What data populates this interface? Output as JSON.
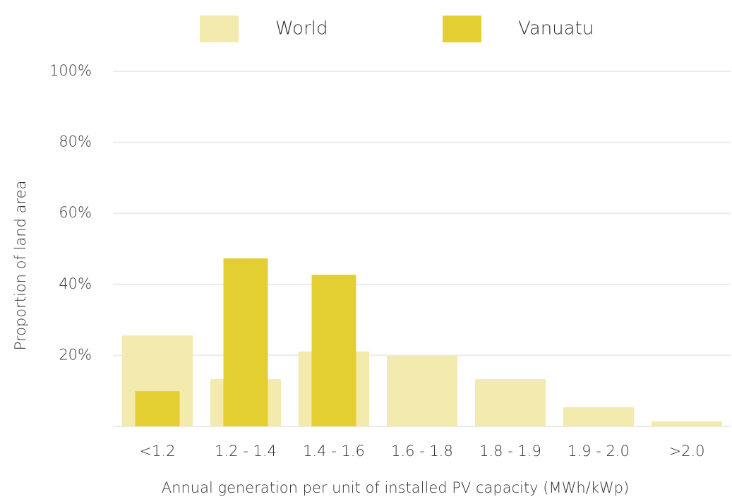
{
  "chart_data": {
    "type": "bar",
    "x_label": "Annual generation per unit of installed PV capacity (MWh/kWp)",
    "y_label": "Proportion of land area",
    "categories": [
      "<1.2",
      "1.2 - 1.4",
      "1.4 - 1.6",
      "1.6 - 1.8",
      "1.8 - 1.9",
      "1.9 - 2.0",
      ">2.0"
    ],
    "series": [
      {
        "name": "World",
        "color": "#f3eaae",
        "values": [
          25.6,
          13.3,
          21.1,
          19.9,
          13.3,
          5.4,
          1.4
        ]
      },
      {
        "name": "Vanuatu",
        "color": "#e4cf33",
        "values": [
          9.9,
          47.3,
          42.7,
          0,
          0,
          0,
          0
        ]
      }
    ],
    "ylim": [
      0,
      100
    ],
    "yticks": [
      {
        "value": 20,
        "label": "20%"
      },
      {
        "value": 40,
        "label": "40%"
      },
      {
        "value": 60,
        "label": "60%"
      },
      {
        "value": 80,
        "label": "80%"
      },
      {
        "value": 100,
        "label": "100%"
      }
    ],
    "grid": true,
    "legend": "top"
  }
}
